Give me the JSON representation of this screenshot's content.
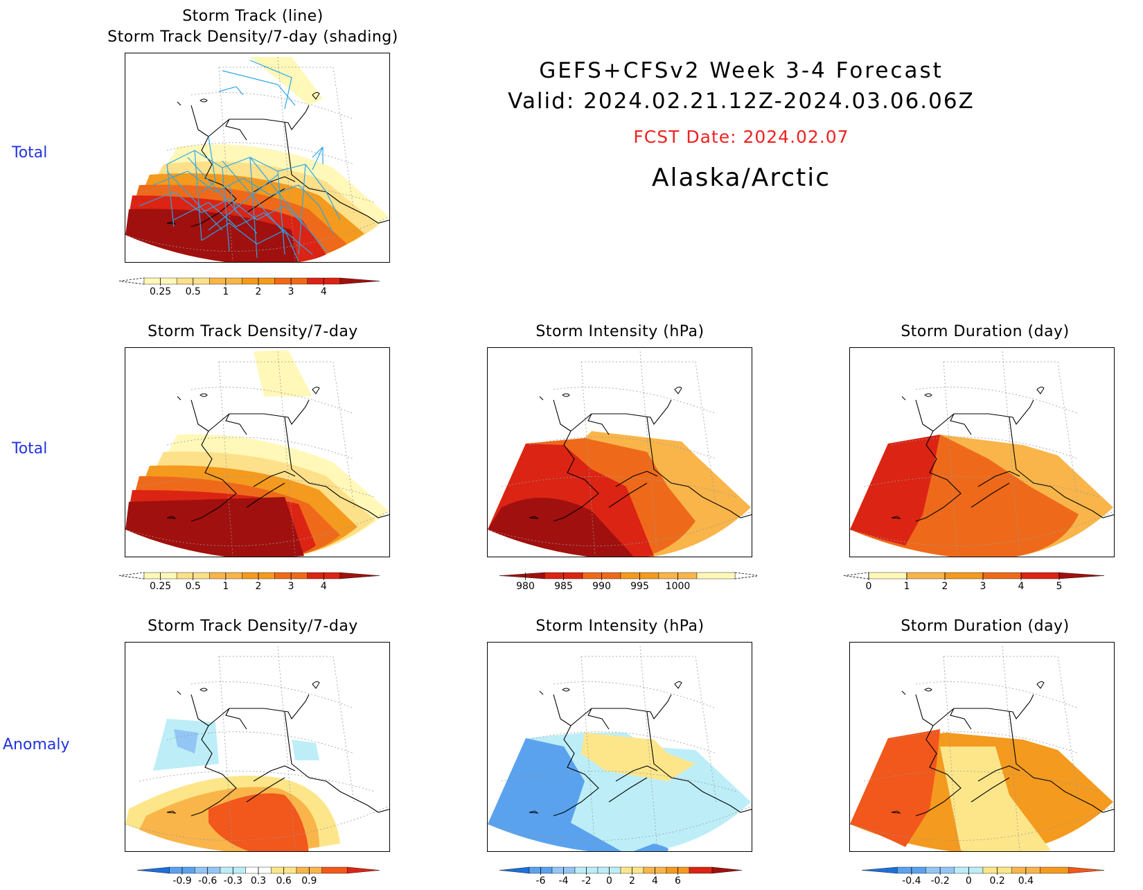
{
  "header": {
    "title": "GEFS+CFSv2 Week 3-4 Forecast",
    "valid": "Valid: 2024.02.21.12Z-2024.03.06.06Z",
    "fcst_date": "FCST Date: 2024.02.07",
    "region": "Alaska/Arctic"
  },
  "rows": {
    "row1_label": "Total",
    "row2_label": "Total",
    "row3_label": "Anomaly"
  },
  "panels": {
    "p1": {
      "title_line1": "Storm Track (line)",
      "title_line2": "Storm Track Density/7-day (shading)"
    },
    "p2": {
      "title": "Storm Track Density/7-day"
    },
    "p3": {
      "title": "Storm Intensity (hPa)"
    },
    "p4": {
      "title": "Storm Duration (day)"
    },
    "p5": {
      "title": "Storm Track Density/7-day"
    },
    "p6": {
      "title": "Storm Intensity (hPa)"
    },
    "p7": {
      "title": "Storm Duration (day)"
    }
  },
  "colorbars": {
    "density": {
      "ticks": [
        "0.25",
        "0.5",
        "1",
        "2",
        "3",
        "4"
      ],
      "colors": [
        "#fff8b8",
        "#fde08a",
        "#f9b54a",
        "#f49a1e",
        "#ee6a1a",
        "#db2414",
        "#a0100e"
      ]
    },
    "intensity": {
      "ticks": [
        "980",
        "985",
        "990",
        "995",
        "1000"
      ],
      "colors": [
        "#a0100e",
        "#db2414",
        "#ee6a1a",
        "#f49a1e",
        "#f9b54a",
        "#fff8b8"
      ]
    },
    "duration": {
      "ticks": [
        "0",
        "1",
        "2",
        "3",
        "4",
        "5"
      ],
      "colors": [
        "#fff8b8",
        "#f9b54a",
        "#f49a1e",
        "#ee6a1a",
        "#db2414",
        "#a0100e"
      ]
    },
    "density_anom": {
      "ticks": [
        "-0.9",
        "-0.6",
        "-0.3",
        "0.3",
        "0.6",
        "0.9"
      ],
      "colors": [
        "#1e6fd8",
        "#5ba2ee",
        "#93c6f5",
        "#bdeef8",
        "#ffffff",
        "#fde68a",
        "#f9b54a",
        "#f2571c",
        "#db2414"
      ]
    },
    "intensity_anom": {
      "ticks": [
        "-6",
        "-4",
        "-2",
        "0",
        "2",
        "4",
        "6"
      ],
      "colors": [
        "#1e6fd8",
        "#5ba2ee",
        "#93c6f5",
        "#bdeef8",
        "#bdeef8",
        "#fde68a",
        "#f9b54a",
        "#f49a1e",
        "#db2414",
        "#a0100e"
      ]
    },
    "duration_anom": {
      "ticks": [
        "-0.4",
        "-0.2",
        "0",
        "0.2",
        "0.4"
      ],
      "colors": [
        "#1e6fd8",
        "#5ba2ee",
        "#93c6f5",
        "#bdeef8",
        "#fde68a",
        "#f9b54a",
        "#f49a1e",
        "#f2571c"
      ]
    }
  }
}
